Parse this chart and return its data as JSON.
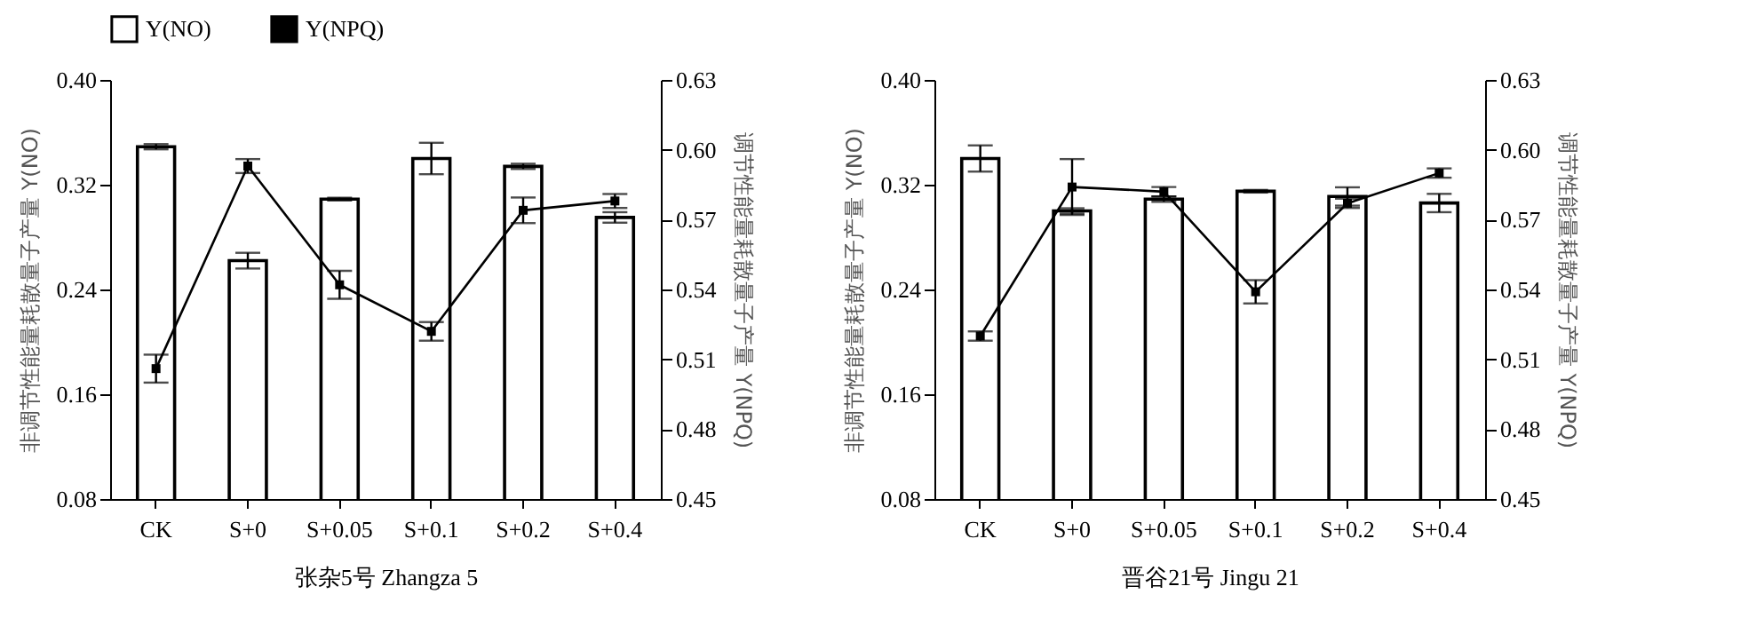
{
  "chart_data": [
    {
      "type": "bar",
      "xlabel": "张杂5号 Zhangza 5",
      "ylabel": "非调节性能量耗散量子产量 Y(NO)",
      "y2label": "调节性能量耗散量子产量 Y(NPQ)",
      "categories": [
        "CK",
        "S+0",
        "S+0.05",
        "S+0.1",
        "S+0.2",
        "S+0.4"
      ],
      "series": [
        {
          "name": "Y(NO)",
          "type": "bar",
          "color": "#ffffff",
          "values": [
            0.349,
            0.262,
            0.309,
            0.34,
            0.334,
            0.295
          ],
          "errors": [
            0.002,
            0.006,
            0.001,
            0.012,
            0.002,
            0.004
          ]
        },
        {
          "name": "Y(NPQ)",
          "type": "line",
          "axis": "y2",
          "color": "#000000",
          "values": [
            0.506,
            0.593,
            0.542,
            0.522,
            0.574,
            0.578
          ],
          "errors": [
            0.006,
            0.003,
            0.006,
            0.004,
            0.0055,
            0.003
          ]
        }
      ],
      "ylim": [
        0.08,
        0.4
      ],
      "yticks": [
        0.08,
        0.16,
        0.24,
        0.32,
        {
          "value": 0.4,
          "label": "0.40"
        }
      ],
      "y2lim": [
        0.45,
        0.63
      ],
      "y2ticks": [
        0.45,
        0.48,
        0.51,
        0.54,
        0.57,
        {
          "value": 0.6,
          "label": "0.60"
        },
        0.63
      ],
      "legend": "top",
      "marker": "square",
      "line_style": "solid"
    },
    {
      "type": "bar",
      "xlabel": "晋谷21号 Jingu 21",
      "ylabel": "非调节性能量耗散量子产量 Y(NO)",
      "y2label": "调节性能量耗散量子产量 Y(NPQ)",
      "categories": [
        "CK",
        "S+0",
        "S+0.05",
        "S+0.1",
        "S+0.2",
        "S+0.4"
      ],
      "series": [
        {
          "type": "bar",
          "color": "#ffffff",
          "values": [
            0.34,
            0.3,
            0.309,
            0.315,
            0.311,
            0.306
          ],
          "errors": [
            0.01,
            0.002,
            0.002,
            0.001,
            0.007,
            0.007
          ]
        },
        {
          "type": "line",
          "axis": "y2",
          "color": "#000000",
          "values": [
            0.52,
            0.584,
            0.582,
            0.539,
            0.577,
            0.59
          ],
          "errors": [
            0.002,
            0.012,
            0.002,
            0.005,
            0.002,
            0.002
          ]
        }
      ],
      "ylim": [
        0.08,
        0.4
      ],
      "yticks": [
        0.08,
        0.16,
        0.24,
        0.32,
        {
          "value": 0.4,
          "label": "0.40"
        }
      ],
      "y2lim": [
        0.45,
        0.63
      ],
      "y2ticks": [
        0.45,
        0.48,
        0.51,
        0.54,
        0.57,
        {
          "value": 0.6,
          "label": "0.60"
        },
        0.63
      ],
      "legend": false,
      "marker": "square",
      "line_style": "solid"
    }
  ]
}
